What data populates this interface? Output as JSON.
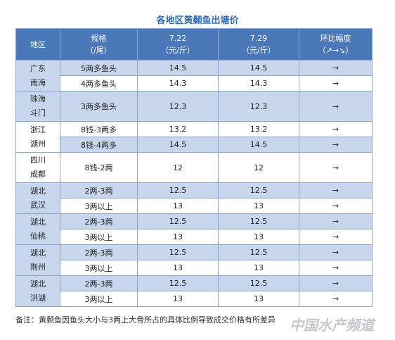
{
  "title": "各地区黄颡鱼出塘价",
  "header": [
    {
      "label": "地区"
    },
    {
      "label": "规格",
      "sub": "（/尾）"
    },
    {
      "label": "7.22",
      "sub": "（元/斤）"
    },
    {
      "label": "7.29",
      "sub": "（元/斤）"
    },
    {
      "label": "环比幅度",
      "sub": "（↗→↘）"
    }
  ],
  "groups": [
    {
      "region": [
        "广东",
        "南海"
      ],
      "rows": [
        [
          "5两多鱼头",
          14.5,
          14.5,
          "→"
        ],
        [
          "4两多鱼头",
          14.3,
          14.3,
          "→"
        ]
      ]
    },
    {
      "region": [
        "珠海",
        "斗门"
      ],
      "rows": [
        [
          "3两多鱼头",
          12.3,
          12.3,
          "→"
        ]
      ]
    },
    {
      "region": [
        "浙江",
        "湖州"
      ],
      "rows": [
        [
          "8钱-3两多",
          13.2,
          13.2,
          "→"
        ],
        [
          "8钱-4两多",
          14.5,
          14.5,
          "→"
        ]
      ]
    },
    {
      "region": [
        "四川",
        "成都"
      ],
      "rows": [
        [
          "8钱-2两",
          12,
          12,
          "→"
        ]
      ]
    },
    {
      "region": [
        "湖北",
        "武汉"
      ],
      "rows": [
        [
          "2两-3两",
          12.5,
          12.5,
          "→"
        ],
        [
          "3两以上",
          13,
          13,
          "→"
        ]
      ]
    },
    {
      "region": [
        "湖北",
        "仙桃"
      ],
      "rows": [
        [
          "2两-3两",
          12.5,
          12.5,
          "→"
        ],
        [
          "3两以上",
          13,
          13,
          "→"
        ]
      ]
    },
    {
      "region": [
        "湖北",
        "荆州"
      ],
      "rows": [
        [
          "2两-3两",
          12.5,
          12.5,
          "→"
        ],
        [
          "3两以上",
          13,
          13,
          "→"
        ]
      ]
    },
    {
      "region": [
        "湖北",
        "洪湖"
      ],
      "rows": [
        [
          "2两-3两",
          12.5,
          12.5,
          "→"
        ],
        [
          "3两以上",
          13,
          13,
          "→"
        ]
      ]
    }
  ],
  "note": "备注：黄颡鱼因鱼头大小与3两上大骨所占的具体比例导致成交价格有所差异",
  "watermark": "中国水产频道"
}
